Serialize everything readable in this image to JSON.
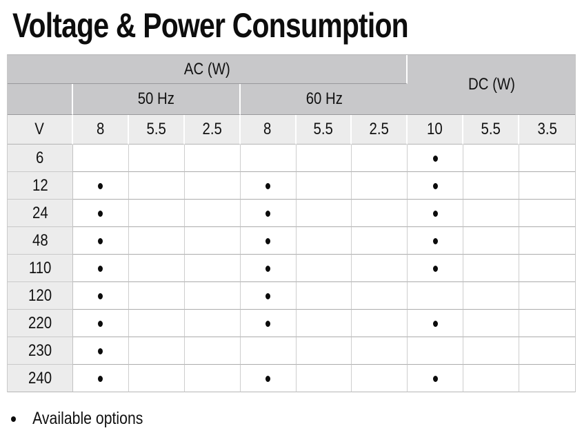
{
  "title": "Voltage & Power Consumption",
  "table": {
    "group_headers": [
      {
        "label": "AC (W)"
      },
      {
        "label": "DC (W)"
      }
    ],
    "freq_headers": [
      {
        "label": "50 Hz"
      },
      {
        "label": "60 Hz"
      }
    ],
    "col_headers": [
      "V",
      "8",
      "5.5",
      "2.5",
      "8",
      "5.5",
      "2.5",
      "10",
      "5.5",
      "3.5"
    ],
    "rows": [
      {
        "voltage": "6",
        "available": [
          false,
          false,
          false,
          false,
          false,
          false,
          true,
          false,
          false
        ]
      },
      {
        "voltage": "12",
        "available": [
          true,
          false,
          false,
          true,
          false,
          false,
          true,
          false,
          false
        ]
      },
      {
        "voltage": "24",
        "available": [
          true,
          false,
          false,
          true,
          false,
          false,
          true,
          false,
          false
        ]
      },
      {
        "voltage": "48",
        "available": [
          true,
          false,
          false,
          true,
          false,
          false,
          true,
          false,
          false
        ]
      },
      {
        "voltage": "110",
        "available": [
          true,
          false,
          false,
          true,
          false,
          false,
          true,
          false,
          false
        ]
      },
      {
        "voltage": "120",
        "available": [
          true,
          false,
          false,
          true,
          false,
          false,
          false,
          false,
          false
        ]
      },
      {
        "voltage": "220",
        "available": [
          true,
          false,
          false,
          true,
          false,
          false,
          true,
          false,
          false
        ]
      },
      {
        "voltage": "230",
        "available": [
          true,
          false,
          false,
          false,
          false,
          false,
          false,
          false,
          false
        ]
      },
      {
        "voltage": "240",
        "available": [
          true,
          false,
          false,
          true,
          false,
          false,
          true,
          false,
          false
        ]
      }
    ]
  },
  "footnote": {
    "text": "Available options"
  },
  "colors": {
    "header_gray": "#c8c8ca",
    "subheader_gray": "#ececec",
    "dot_black": "#0c0c0c",
    "border_dark": "#98989b",
    "border_light": "#cdcdcd",
    "text": "#111111"
  }
}
